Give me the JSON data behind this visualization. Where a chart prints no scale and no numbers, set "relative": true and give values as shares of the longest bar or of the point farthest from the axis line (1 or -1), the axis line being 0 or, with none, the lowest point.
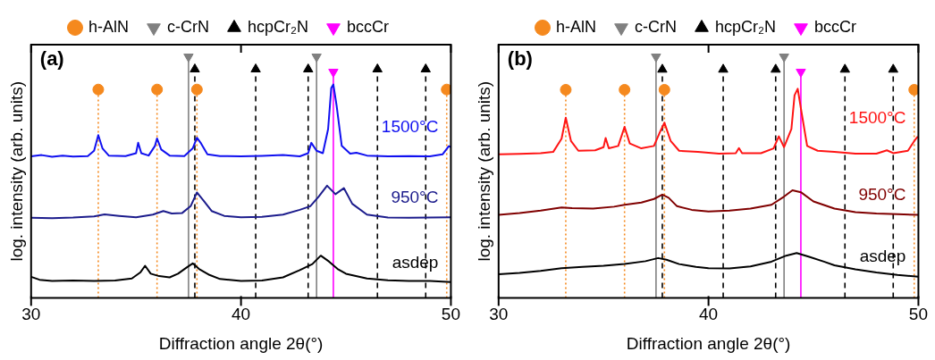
{
  "chart_data": [
    {
      "type": "line",
      "title": "(a)",
      "xlabel": "Diffraction angle 2θ(°)",
      "ylabel": "log. intensity (arb. units)",
      "xlim": [
        30,
        50
      ],
      "xticks": [
        30,
        40,
        50
      ],
      "relative": true,
      "legend": "top",
      "grid": false,
      "series": [
        {
          "name": "h-AlN",
          "type": "lollipop",
          "marker": "circle",
          "line_style": "dotted",
          "color": "#f5891e",
          "x": [
            33.2,
            36.0,
            37.9,
            49.8
          ],
          "values": [
            0.864,
            0.864,
            0.864,
            0.864
          ]
        },
        {
          "name": "c-CrN",
          "type": "lollipop",
          "marker": "triangle-down",
          "line_style": "solid",
          "color": "#808080",
          "x": [
            37.5,
            43.6
          ],
          "values": [
            1,
            1
          ]
        },
        {
          "name": "hcpCr₂N",
          "type": "lollipop",
          "marker": "triangle",
          "line_style": "dashed",
          "color": "#000000",
          "x": [
            37.8,
            40.7,
            43.2,
            46.5,
            48.8
          ],
          "values": [
            0.948,
            0.948,
            0.948,
            0.948,
            0.948
          ]
        },
        {
          "name": "bccCr",
          "type": "lollipop",
          "marker": "triangle-down",
          "line_style": "solid",
          "color": "#ff00ff",
          "x": [
            44.4
          ],
          "values": [
            0.937
          ]
        },
        {
          "name": "1500°C",
          "type": "line",
          "color": "#1010f0",
          "x": [
            30,
            30.5,
            31,
            31.5,
            32,
            32.7,
            33.0,
            33.2,
            33.4,
            33.7,
            34.5,
            35.0,
            35.1,
            35.25,
            35.6,
            35.9,
            36.0,
            36.2,
            36.6,
            37.3,
            37.7,
            37.9,
            38.1,
            38.4,
            39,
            40,
            41,
            42,
            42.8,
            43.2,
            43.35,
            43.6,
            43.9,
            44.15,
            44.3,
            44.4,
            44.55,
            44.8,
            45.2,
            45.5,
            46,
            47,
            48,
            49,
            49.6,
            49.9,
            50
          ],
          "values": [
            0.587,
            0.592,
            0.585,
            0.59,
            0.586,
            0.588,
            0.61,
            0.675,
            0.62,
            0.59,
            0.588,
            0.6,
            0.643,
            0.6,
            0.59,
            0.63,
            0.661,
            0.615,
            0.59,
            0.588,
            0.62,
            0.664,
            0.64,
            0.595,
            0.588,
            0.587,
            0.589,
            0.592,
            0.587,
            0.6,
            0.643,
            0.61,
            0.6,
            0.7,
            0.87,
            0.885,
            0.8,
            0.63,
            0.598,
            0.602,
            0.59,
            0.587,
            0.588,
            0.587,
            0.595,
            0.629,
            0.625
          ]
        },
        {
          "name": "950°C",
          "type": "line",
          "color": "#1c1c8c",
          "x": [
            30,
            31,
            32,
            33,
            33.5,
            34.2,
            35,
            35.8,
            36.3,
            36.7,
            37.2,
            37.6,
            37.9,
            38.2,
            38.6,
            39.2,
            40,
            41,
            42,
            42.8,
            43.3,
            43.7,
            44.1,
            44.5,
            44.9,
            45.3,
            46,
            47,
            48,
            49,
            50
          ],
          "values": [
            0.332,
            0.33,
            0.333,
            0.338,
            0.346,
            0.34,
            0.334,
            0.345,
            0.36,
            0.35,
            0.352,
            0.38,
            0.437,
            0.405,
            0.36,
            0.34,
            0.334,
            0.336,
            0.345,
            0.365,
            0.38,
            0.42,
            0.465,
            0.43,
            0.455,
            0.39,
            0.345,
            0.333,
            0.332,
            0.333,
            0.334
          ]
        },
        {
          "name": "asdep",
          "type": "line",
          "color": "#000000",
          "x": [
            30,
            30.4,
            31,
            32,
            33,
            34,
            34.8,
            35.2,
            35.43,
            35.7,
            36.1,
            36.6,
            37,
            37.4,
            37.7,
            38.0,
            38.5,
            39,
            40,
            41,
            42,
            42.8,
            43.4,
            43.8,
            44.2,
            44.6,
            45,
            46,
            47,
            48,
            49,
            50
          ],
          "values": [
            0.087,
            0.075,
            0.07,
            0.072,
            0.07,
            0.072,
            0.08,
            0.105,
            0.133,
            0.1,
            0.09,
            0.085,
            0.1,
            0.125,
            0.143,
            0.12,
            0.095,
            0.078,
            0.07,
            0.072,
            0.085,
            0.115,
            0.14,
            0.175,
            0.15,
            0.12,
            0.1,
            0.08,
            0.073,
            0.07,
            0.07,
            0.065
          ]
        }
      ]
    },
    {
      "type": "line",
      "title": "(b)",
      "xlabel": "Diffraction angle 2θ(°)",
      "ylabel": "log. intensity (arb. units)",
      "xlim": [
        30,
        50
      ],
      "xticks": [
        30,
        40,
        50
      ],
      "relative": true,
      "legend": "top",
      "grid": false,
      "series": [
        {
          "name": "h-AlN",
          "type": "lollipop",
          "marker": "circle",
          "line_style": "dotted",
          "color": "#f5891e",
          "x": [
            33.2,
            36.0,
            37.9,
            49.8
          ],
          "values": [
            0.863,
            0.863,
            0.863,
            0.863
          ]
        },
        {
          "name": "c-CrN",
          "type": "lollipop",
          "marker": "triangle-down",
          "line_style": "solid",
          "color": "#808080",
          "x": [
            37.5,
            43.6
          ],
          "values": [
            1,
            1
          ]
        },
        {
          "name": "hcpCr₂N",
          "type": "lollipop",
          "marker": "triangle",
          "line_style": "dashed",
          "color": "#000000",
          "x": [
            37.8,
            40.7,
            43.2,
            46.5,
            48.8
          ],
          "values": [
            0.947,
            0.947,
            0.947,
            0.947,
            0.947
          ]
        },
        {
          "name": "bccCr",
          "type": "lollipop",
          "marker": "triangle-down",
          "line_style": "solid",
          "color": "#ff00ff",
          "x": [
            44.4
          ],
          "values": [
            0.937
          ]
        },
        {
          "name": "1500°C",
          "type": "line",
          "color": "#ff1414",
          "x": [
            30,
            31,
            32,
            32.6,
            33.0,
            33.2,
            33.45,
            33.8,
            34.6,
            35.0,
            35.1,
            35.25,
            35.7,
            36.0,
            36.25,
            36.8,
            37.4,
            37.7,
            37.9,
            38.2,
            38.6,
            39.5,
            40.5,
            41.3,
            41.45,
            41.6,
            42.5,
            43.1,
            43.35,
            43.6,
            43.95,
            44.1,
            44.25,
            44.45,
            44.7,
            45.2,
            46,
            47,
            48,
            48.5,
            48.8,
            49.5,
            49.8,
            49.95,
            50
          ],
          "values": [
            0.595,
            0.597,
            0.6,
            0.605,
            0.66,
            0.747,
            0.65,
            0.61,
            0.612,
            0.625,
            0.663,
            0.62,
            0.63,
            0.709,
            0.64,
            0.62,
            0.63,
            0.69,
            0.726,
            0.65,
            0.61,
            0.605,
            0.598,
            0.6,
            0.621,
            0.6,
            0.6,
            0.62,
            0.67,
            0.625,
            0.7,
            0.84,
            0.867,
            0.76,
            0.63,
            0.61,
            0.605,
            0.598,
            0.598,
            0.612,
            0.6,
            0.61,
            0.65,
            0.667,
            0.665
          ]
        },
        {
          "name": "950°C",
          "type": "line",
          "color": "#800000",
          "x": [
            30,
            31,
            32,
            33,
            33.5,
            34.5,
            35.5,
            36,
            36.8,
            37.4,
            37.8,
            38.1,
            38.5,
            39.2,
            40,
            41,
            42,
            43,
            43.6,
            44.0,
            44.4,
            45,
            46,
            47,
            48,
            49,
            50
          ],
          "values": [
            0.344,
            0.352,
            0.362,
            0.375,
            0.372,
            0.37,
            0.378,
            0.386,
            0.395,
            0.41,
            0.428,
            0.415,
            0.38,
            0.365,
            0.358,
            0.362,
            0.37,
            0.386,
            0.42,
            0.446,
            0.438,
            0.4,
            0.37,
            0.355,
            0.35,
            0.347,
            0.344
          ]
        },
        {
          "name": "asdep",
          "type": "line",
          "color": "#000000",
          "x": [
            30,
            31,
            32,
            33,
            34,
            35,
            36,
            37,
            37.6,
            38,
            38.6,
            39.4,
            40,
            41,
            42,
            43,
            43.7,
            44.2,
            44.8,
            45.5,
            46,
            47,
            48,
            49,
            50
          ],
          "values": [
            0.098,
            0.103,
            0.112,
            0.123,
            0.128,
            0.133,
            0.14,
            0.152,
            0.165,
            0.158,
            0.14,
            0.128,
            0.123,
            0.122,
            0.13,
            0.15,
            0.175,
            0.186,
            0.17,
            0.15,
            0.135,
            0.118,
            0.105,
            0.095,
            0.088
          ]
        }
      ]
    }
  ]
}
